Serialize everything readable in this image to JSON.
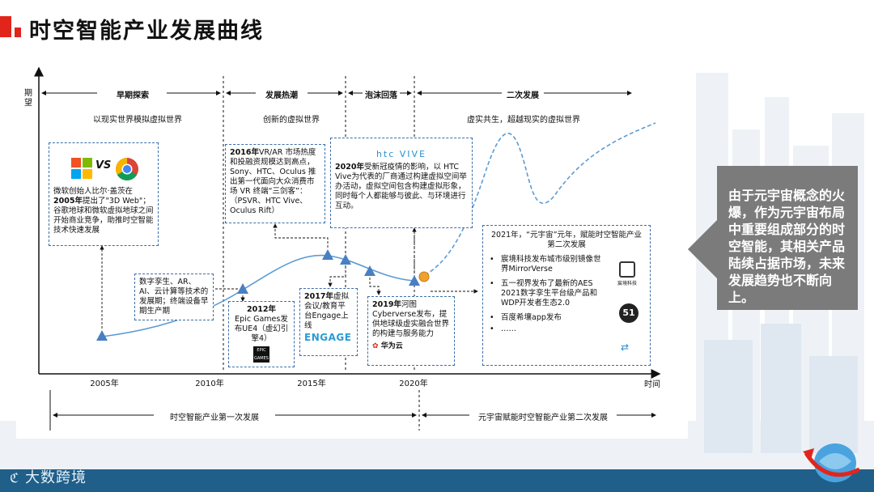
{
  "title": "时空智能产业发展曲线",
  "axis": {
    "y_label": "期望",
    "x_label": "时间"
  },
  "phases": [
    {
      "label": "早期探索",
      "subtitle": "以现实世界模拟虚拟世界"
    },
    {
      "label": "发展热潮",
      "subtitle": "创新的虚拟世界"
    },
    {
      "label": "泡沫回落",
      "subtitle": ""
    },
    {
      "label": "二次发展",
      "subtitle": "虚实共生，超越现实的虚拟世界"
    }
  ],
  "years": [
    "2005年",
    "2010年",
    "2015年",
    "2020年"
  ],
  "eras": [
    {
      "label": "时空智能产业第一次发展"
    },
    {
      "label": "元宇宙赋能时空智能产业第二次发展"
    }
  ],
  "boxes": {
    "b2005": {
      "year": "2005年",
      "text1": "微软创始人比尔·盖茨在",
      "text2": "提出了\"3D Web\"；谷歌地球和微软虚拟地球之间开始商业竞争，助推时空智能技术快速发展",
      "logo_vs": "VS"
    },
    "digital": {
      "text": "数字孪生、AR、AI、云计算等技术的发展期；终端设备早期生产期"
    },
    "b2012": {
      "year": "2012年",
      "text": "Epic Games发布UE4（虚幻引擎4）",
      "logo": "EPIC GAMES"
    },
    "b2016": {
      "year": "2016年",
      "text": "VR/AR 市场热度和投融资规模达到高点，Sony、HTC、Oculus 推出第一代面向大众消费市场 VR 终端“三剑客”：（PSVR、HTC Vive、Oculus Rift）"
    },
    "b2017": {
      "year": "2017年",
      "text": "虚拟会议/教育平台Engage上线",
      "logo": "ENGAGE"
    },
    "b2019": {
      "year": "2019年",
      "text": "河图Cyberverse发布，提供地球级虚实融合世界的构建与服务能力",
      "logo": "华为云"
    },
    "b2020": {
      "year": "2020年",
      "text": "受新冠疫情的影响，以 HTC Vive为代表的厂商通过构建虚拟空间举办活动，虚拟空间包含构建虚拟形象，同时每个人都能够与彼此、与环境进行互动。",
      "logo": "htc VIVE"
    },
    "b2021": {
      "title": "2021年，“元宇宙”元年，赋能时空智能产业第二次发展",
      "items": [
        {
          "text": "宸境科技发布城市级别镜像世界MirrorVerse",
          "logo": "宸境科技"
        },
        {
          "text": "五一视界发布了最新的AES 2021数字孪生平台级产品和WDP开发者生态2.0",
          "logo": "51"
        },
        {
          "text": "百度希壤app发布"
        },
        {
          "text": "……"
        }
      ]
    }
  },
  "side_note": "由于元宇宙概念的火爆，作为元宇宙布局中重要组成部分的时空智能，其相关产品陆续占据市场，未来发展趋势也不断向上。",
  "footer_logo": "大数跨境",
  "colors": {
    "accent": "#e1251b",
    "curve": "#5b9bd5",
    "marker": "#4a7fc1",
    "dashed": "#3b6ea8",
    "orange": "#f0a030",
    "footer": "#1f5f8a",
    "side": "#7b7b7b"
  }
}
